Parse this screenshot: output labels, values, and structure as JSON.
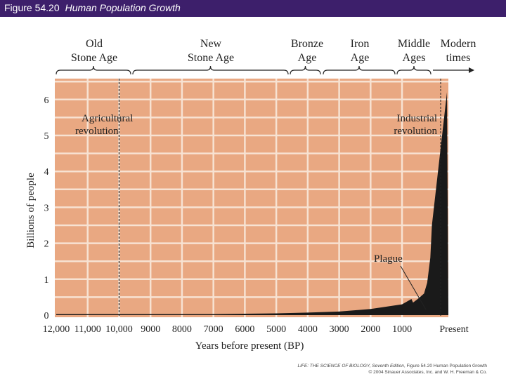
{
  "header": {
    "figure_number": "Figure 54.20",
    "figure_title": "Human Population Growth"
  },
  "colors": {
    "header_bg": "#3d1f6b",
    "plot_bg": "#e9a882",
    "grid": "#f7e2d2",
    "population_fill": "#1a1a1a"
  },
  "chart_data": {
    "type": "area",
    "xlabel": "Years before present (BP)",
    "ylabel": "Billions of people",
    "x_ticks": [
      "12,000",
      "11,000",
      "10,000",
      "9000",
      "8000",
      "7000",
      "6000",
      "5000",
      "4000",
      "3000",
      "2000",
      "1000",
      "Present"
    ],
    "y_ticks": [
      "0",
      "1",
      "2",
      "3",
      "4",
      "5",
      "6"
    ],
    "ylim": [
      0,
      6.5
    ],
    "xlim": [
      12000,
      0
    ],
    "grid": true,
    "series": [
      {
        "x": [
          12000,
          11000,
          10000,
          9000,
          8000,
          7000,
          6000,
          5000,
          4000,
          3000,
          2000,
          1000,
          700,
          650,
          500,
          300,
          200,
          100,
          50,
          0
        ],
        "y": [
          0.004,
          0.005,
          0.005,
          0.01,
          0.02,
          0.03,
          0.04,
          0.05,
          0.07,
          0.1,
          0.17,
          0.3,
          0.45,
          0.35,
          0.45,
          0.6,
          0.9,
          1.6,
          2.5,
          6.2
        ]
      }
    ],
    "annotations": [
      {
        "text": "Agricultural revolution",
        "line_1": "Agricultural",
        "line_2": "revolution",
        "x": 10000
      },
      {
        "text": "Industrial revolution",
        "line_1": "Industrial",
        "line_2": "revolution",
        "x": 200
      },
      {
        "text": "Plague",
        "x": 650,
        "y": 0.35
      }
    ],
    "eras": [
      {
        "line_1": "Old",
        "line_2": "Stone Age"
      },
      {
        "line_1": "New",
        "line_2": "Stone Age"
      },
      {
        "line_1": "Bronze",
        "line_2": "Age"
      },
      {
        "line_1": "Iron",
        "line_2": "Age"
      },
      {
        "line_1": "Middle",
        "line_2": "Ages"
      },
      {
        "line_1": "Modern",
        "line_2": "times"
      }
    ]
  },
  "credit": {
    "line_1_book": "LIFE: THE SCIENCE OF BIOLOGY, Seventh Edition",
    "line_1_rest": ", Figure 54.20 Human Population Growth",
    "line_2": "© 2004 Sinauer Associates, Inc. and W. H. Freeman & Co."
  }
}
